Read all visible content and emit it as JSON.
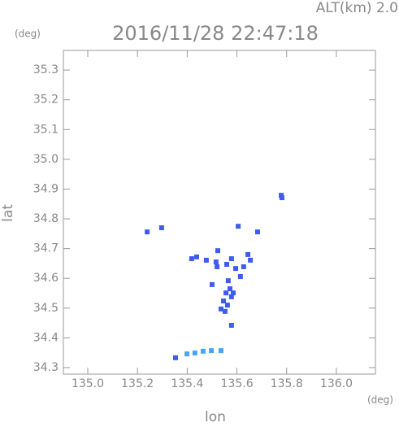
{
  "chart_data": {
    "type": "scatter",
    "title": "2016/11/28 22:47:18",
    "subtitle": "ALT(km) 2.0",
    "x_label": "lon",
    "y_label": "lat",
    "x_unit": "(deg)",
    "y_unit": "(deg)",
    "xlim": [
      134.902,
      136.157
    ],
    "ylim": [
      34.278,
      35.366
    ],
    "xticks": [
      {
        "value": 135,
        "label": "135.0"
      },
      135.2,
      135.4,
      135.6,
      135.8,
      {
        "value": 136,
        "label": "136.0"
      }
    ],
    "yticks": [
      34.3,
      34.4,
      34.5,
      34.6,
      34.7,
      34.8,
      34.9,
      {
        "value": 35,
        "label": "35.0"
      },
      35.1,
      35.2,
      35.3
    ],
    "grid": false,
    "series": [
      {
        "color": "#3f5cf0",
        "x": [
          135.778,
          135.781,
          135.239,
          135.297,
          135.605,
          135.683,
          135.418,
          135.438,
          135.477,
          135.523,
          135.516,
          135.52,
          135.559,
          135.578,
          135.595,
          135.627,
          135.644,
          135.654,
          135.614,
          135.5,
          135.565,
          135.572,
          135.585,
          135.556,
          135.546,
          135.562,
          135.578,
          135.536,
          135.552,
          135.578,
          135.353
        ],
        "values": [
          34.879,
          34.871,
          34.756,
          34.77,
          34.775,
          34.756,
          34.666,
          34.672,
          34.661,
          34.693,
          34.655,
          34.639,
          34.647,
          34.666,
          34.633,
          34.639,
          34.68,
          34.661,
          34.606,
          34.579,
          34.592,
          34.565,
          34.551,
          34.551,
          34.524,
          34.51,
          34.538,
          34.497,
          34.489,
          34.442,
          34.333
        ]
      },
      {
        "color": "#4aa6f2",
        "x": [
          135.399,
          135.431,
          135.464,
          135.497,
          135.536
        ],
        "values": [
          34.346,
          34.349,
          34.355,
          34.357,
          34.357
        ]
      }
    ]
  }
}
